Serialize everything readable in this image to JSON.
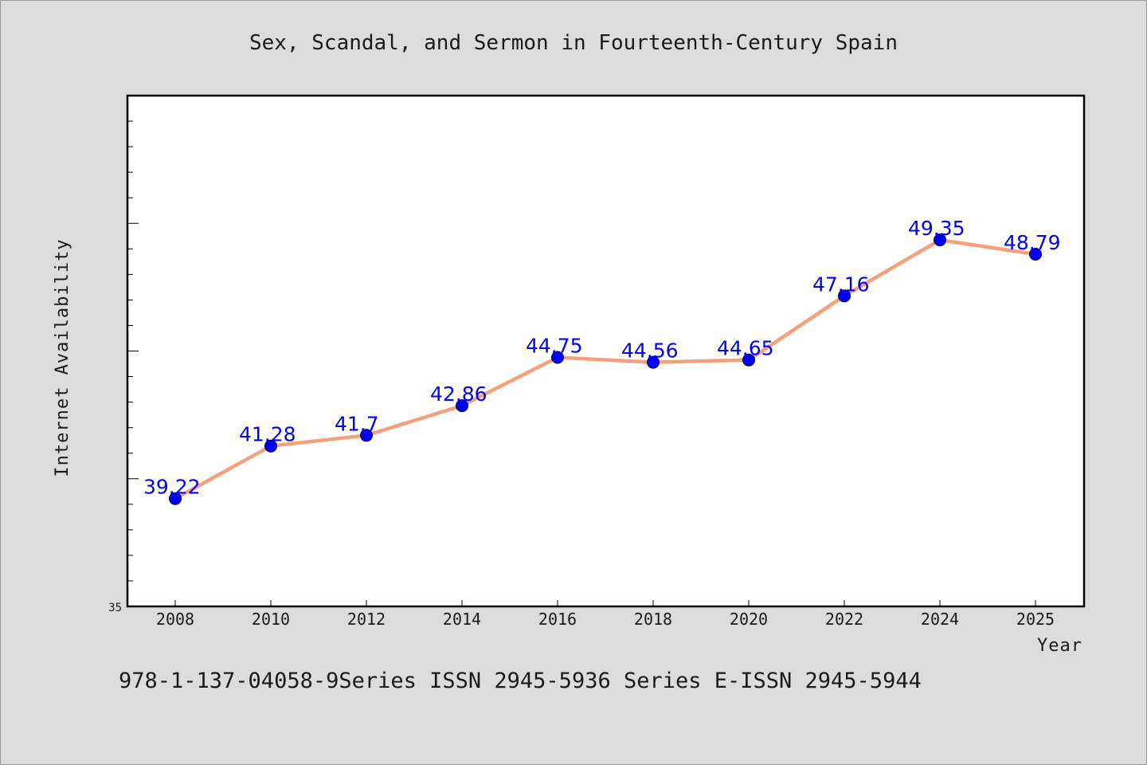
{
  "chart_data": {
    "type": "line",
    "title": "Sex, Scandal, and Sermon in Fourteenth-Century Spain",
    "xlabel": "Year",
    "ylabel": "Internet Availability",
    "categories": [
      "2008",
      "2010",
      "2012",
      "2014",
      "2016",
      "2018",
      "2020",
      "2022",
      "2024",
      "2025"
    ],
    "series": [
      {
        "values": [
          39.22,
          41.28,
          41.7,
          42.86,
          44.75,
          44.56,
          44.65,
          47.16,
          49.35,
          48.79
        ],
        "data_labels": [
          "39.22",
          "41.28",
          "41.7",
          "42.86",
          "44.75",
          "44.56",
          "44.65",
          "47.16",
          "49.35",
          "48.79"
        ],
        "line_color": "#f4a07a",
        "marker_color": "#0000ff"
      }
    ],
    "ylim": [
      35,
      55
    ],
    "y_tick_labels": [
      "35"
    ],
    "grid": false,
    "legend": "none"
  },
  "footer": {
    "text": "978-1-137-04058-9Series ISSN 2945-5936 Series E-ISSN 2945-5944"
  },
  "colors": {
    "background": "#dcdcdc",
    "plot_background": "#ffffff",
    "data_label": "#0000ff"
  }
}
